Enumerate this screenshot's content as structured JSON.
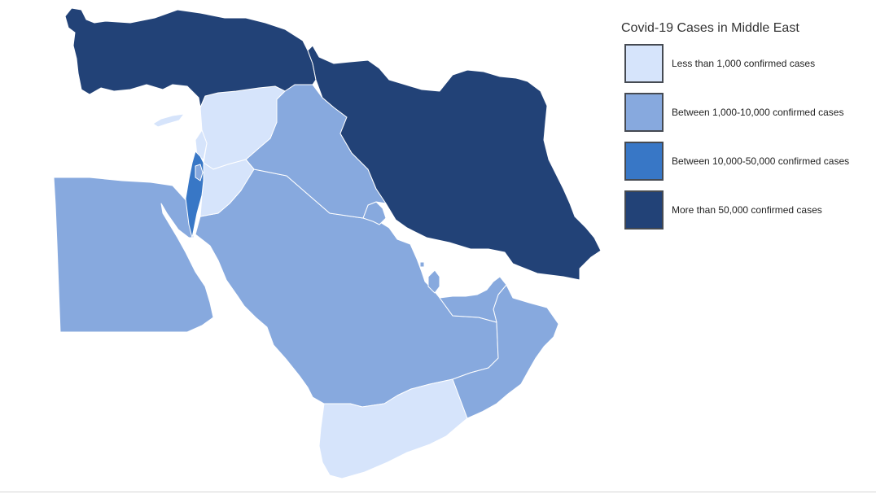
{
  "map": {
    "title": "Covid-19 Cases in Middle East",
    "colors": {
      "lt_1k": "#d6e4fb",
      "1k_10k": "#87a9de",
      "10k_50k": "#3877c6",
      "gt_50k": "#224277"
    },
    "legend": [
      {
        "label": "Less than 1,000 confirmed cases",
        "color": "#d6e4fb"
      },
      {
        "label": "Between 1,000-10,000 confirmed cases",
        "color": "#87a9de"
      },
      {
        "label": "Between 10,000-50,000 confirmed cases",
        "color": "#3877c6"
      },
      {
        "label": "More than 50,000 confirmed cases",
        "color": "#224277"
      }
    ],
    "regions": [
      {
        "name": "turkey",
        "category": "gt_50k"
      },
      {
        "name": "iran",
        "category": "gt_50k"
      },
      {
        "name": "syria",
        "category": "lt_1k"
      },
      {
        "name": "lebanon",
        "category": "lt_1k"
      },
      {
        "name": "jordan",
        "category": "lt_1k"
      },
      {
        "name": "cyprus",
        "category": "lt_1k"
      },
      {
        "name": "yemen",
        "category": "lt_1k"
      },
      {
        "name": "israel",
        "category": "10k_50k"
      },
      {
        "name": "palestine",
        "category": "1k_10k"
      },
      {
        "name": "iraq",
        "category": "1k_10k"
      },
      {
        "name": "egypt",
        "category": "1k_10k"
      },
      {
        "name": "saudi-arabia",
        "category": "1k_10k"
      },
      {
        "name": "kuwait",
        "category": "1k_10k"
      },
      {
        "name": "bahrain",
        "category": "1k_10k"
      },
      {
        "name": "qatar",
        "category": "1k_10k"
      },
      {
        "name": "uae",
        "category": "1k_10k"
      },
      {
        "name": "oman",
        "category": "1k_10k"
      }
    ]
  }
}
